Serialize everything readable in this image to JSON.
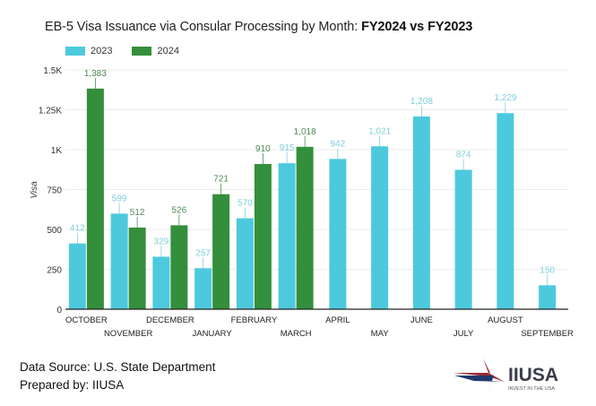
{
  "title_regular": "EB-5 Visa Issuance via Consular Processing by Month: ",
  "title_bold": "FY2024 vs FY2023",
  "footer": {
    "source": "Data Source: U.S. State Department",
    "prepared": "Prepared by: IIUSA"
  },
  "logo": {
    "name": "IIUSA",
    "tagline": "INVEST IN THE USA",
    "colors": {
      "red": "#9b2b35",
      "blue": "#1f3a6e"
    }
  },
  "chart_data": {
    "type": "bar",
    "title": "EB-5 Visa Issuance via Consular Processing by Month: FY2024 vs FY2023",
    "xlabel": "",
    "ylabel": "Visa",
    "ylim": [
      0,
      1500
    ],
    "yticks": [
      0,
      250,
      500,
      750,
      1000,
      1250,
      1500
    ],
    "ytick_labels": [
      "0",
      "250",
      "500",
      "750",
      "1K",
      "1.25K",
      "1.5K"
    ],
    "grid": true,
    "legend": "top-left",
    "categories": [
      "OCTOBER",
      "NOVEMBER",
      "DECEMBER",
      "JANUARY",
      "FEBRUARY",
      "MARCH",
      "APRIL",
      "MAY",
      "JUNE",
      "JULY",
      "AUGUST",
      "SEPTEMBER"
    ],
    "series": [
      {
        "name": "2023",
        "color": "#4dc9dd",
        "label_color": "#7fcfdc",
        "values": [
          412,
          599,
          329,
          257,
          570,
          915,
          942,
          1021,
          1208,
          874,
          1229,
          150
        ],
        "labels": [
          "412",
          "599",
          "329",
          "257",
          "570",
          "915",
          "942",
          "1,021",
          "1,208",
          "874",
          "1,229",
          "150"
        ]
      },
      {
        "name": "2024",
        "color": "#338f3c",
        "label_color": "#4f8a52",
        "values": [
          1383,
          512,
          526,
          721,
          910,
          1018,
          null,
          null,
          null,
          null,
          null,
          null
        ],
        "labels": [
          "1,383",
          "512",
          "526",
          "721",
          "910",
          "1,018",
          null,
          null,
          null,
          null,
          null,
          null
        ]
      }
    ]
  }
}
